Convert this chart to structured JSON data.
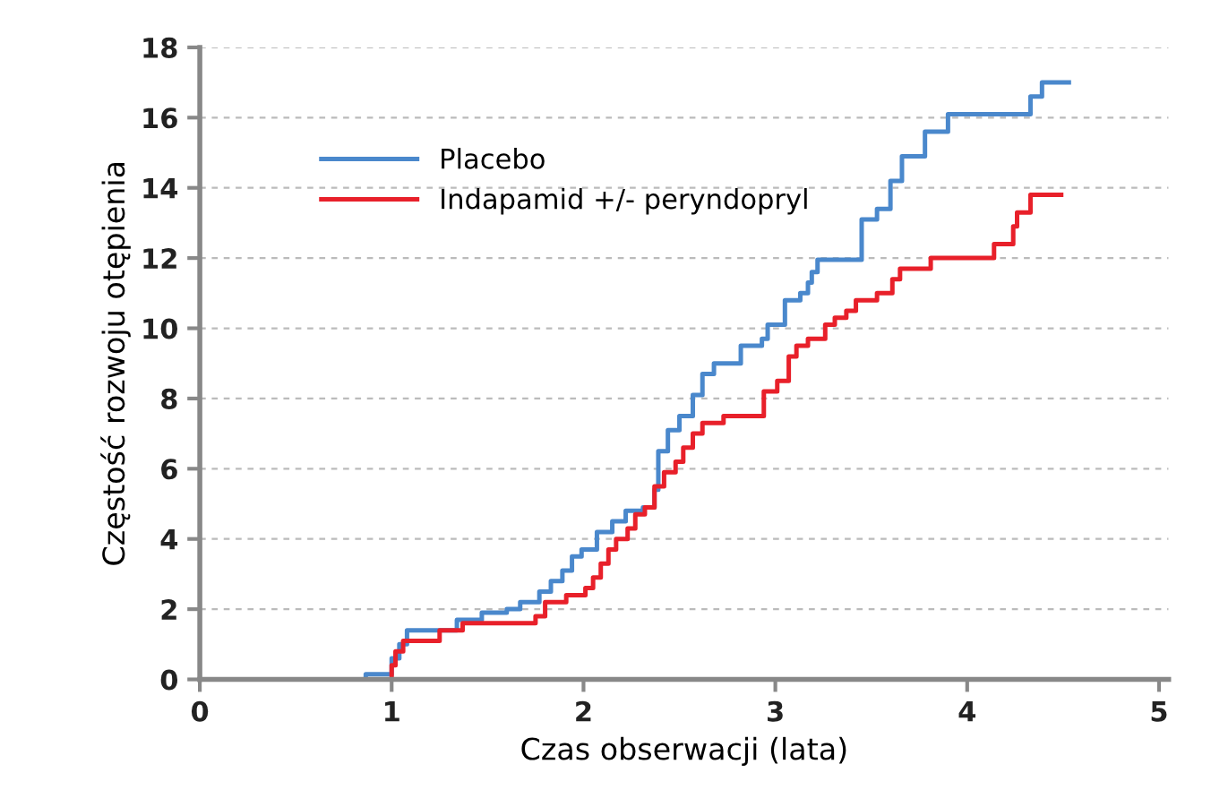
{
  "chart_data": {
    "type": "step",
    "xlabel": "Czas obserwacji (lata)",
    "ylabel": "Częstość rozwoju otępienia",
    "xlim": [
      0,
      5.05
    ],
    "ylim": [
      0,
      18
    ],
    "xticks": [
      0,
      1,
      2,
      3,
      4,
      5
    ],
    "yticks": [
      0,
      2,
      4,
      6,
      8,
      10,
      12,
      14,
      16,
      18
    ],
    "grid": "y",
    "legend": "top left",
    "line_style": "solid",
    "marker": "none",
    "series": [
      {
        "name": "Placebo",
        "color": "#4a88cc",
        "x": [
          0,
          0.865,
          1.0,
          1.04,
          1.08,
          1.34,
          1.47,
          1.6,
          1.67,
          1.77,
          1.83,
          1.89,
          1.94,
          1.99,
          2.07,
          2.15,
          2.22,
          2.31,
          2.37,
          2.39,
          2.44,
          2.5,
          2.57,
          2.62,
          2.68,
          2.82,
          2.93,
          2.96,
          3.05,
          3.13,
          3.17,
          3.19,
          3.22,
          3.45,
          3.53,
          3.6,
          3.66,
          3.78,
          3.9,
          4.33,
          4.39,
          4.53
        ],
        "values": [
          0,
          0.15,
          0.6,
          1.0,
          1.4,
          1.7,
          1.9,
          2.0,
          2.2,
          2.5,
          2.8,
          3.1,
          3.5,
          3.7,
          4.2,
          4.5,
          4.8,
          4.9,
          5.4,
          6.5,
          7.1,
          7.5,
          8.1,
          8.7,
          9.0,
          9.5,
          9.7,
          10.1,
          10.8,
          11.0,
          11.3,
          11.6,
          11.95,
          13.1,
          13.4,
          14.2,
          14.9,
          15.6,
          16.1,
          16.6,
          17.0,
          17.0
        ]
      },
      {
        "name": "Indapamid +/- peryndopryl",
        "color": "#e8202a",
        "x": [
          0,
          1.0,
          1.02,
          1.06,
          1.25,
          1.37,
          1.75,
          1.8,
          1.91,
          2.01,
          2.05,
          2.09,
          2.13,
          2.17,
          2.23,
          2.27,
          2.32,
          2.37,
          2.42,
          2.48,
          2.52,
          2.57,
          2.62,
          2.73,
          2.94,
          3.01,
          3.07,
          3.11,
          3.17,
          3.26,
          3.31,
          3.37,
          3.42,
          3.53,
          3.61,
          3.65,
          3.81,
          4.14,
          4.24,
          4.26,
          4.33,
          4.49
        ],
        "values": [
          0,
          0.4,
          0.8,
          1.1,
          1.4,
          1.6,
          1.8,
          2.2,
          2.4,
          2.6,
          2.9,
          3.3,
          3.7,
          4.0,
          4.3,
          4.7,
          4.9,
          5.5,
          5.9,
          6.2,
          6.6,
          7.0,
          7.3,
          7.5,
          8.2,
          8.5,
          9.2,
          9.5,
          9.7,
          10.1,
          10.3,
          10.5,
          10.8,
          11.0,
          11.4,
          11.7,
          12.0,
          12.4,
          12.9,
          13.3,
          13.8,
          13.8
        ]
      }
    ]
  }
}
